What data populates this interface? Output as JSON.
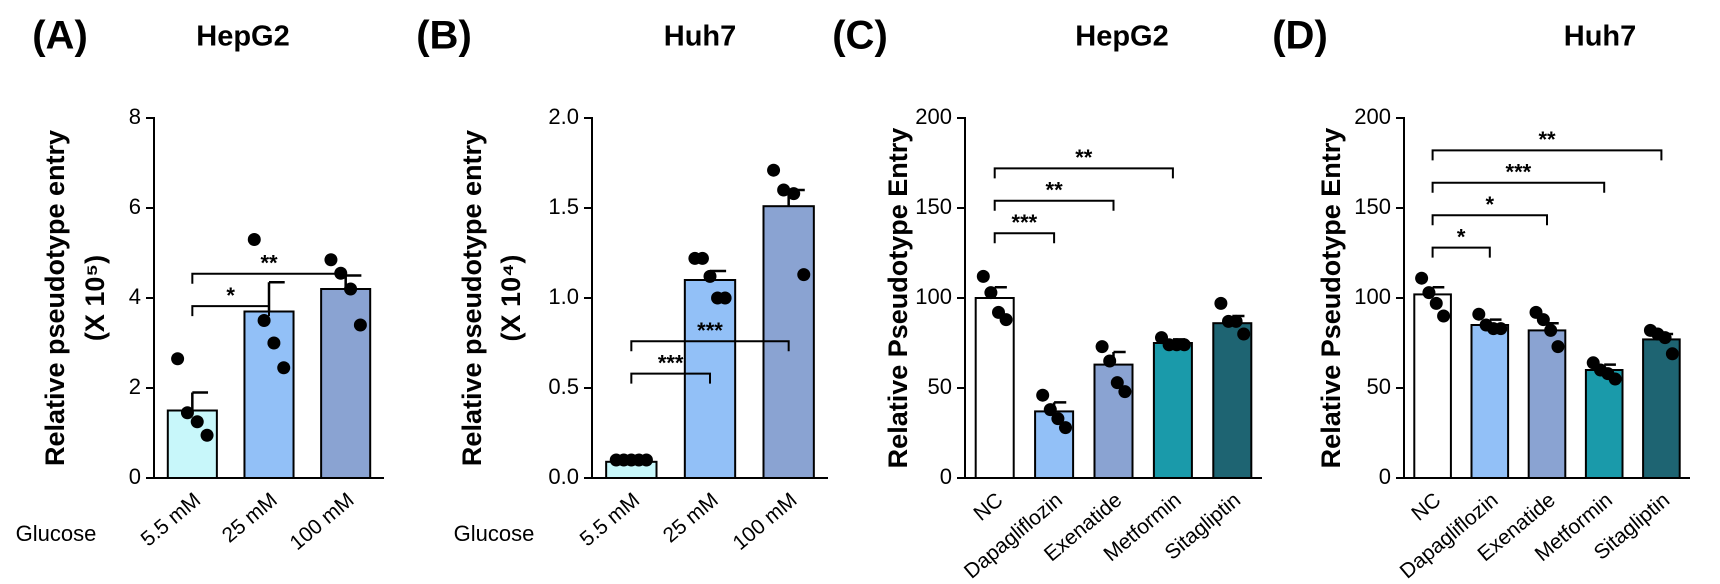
{
  "chart_data": [
    {
      "type": "bar",
      "panel_label": "(A)",
      "title": "HepG2",
      "y_label": "Relative pseudotype entry",
      "y_label_unit": "(X 10⁵)",
      "x_label": "Glucose",
      "categories": [
        "5.5 mM",
        "25 mM",
        "100 mM"
      ],
      "colors": [
        "#c8f7fa",
        "#92c0f7",
        "#8aa3d2"
      ],
      "values": [
        1.5,
        3.7,
        4.2
      ],
      "errors": [
        0.4,
        0.65,
        0.3
      ],
      "points": [
        [
          2.65,
          1.45,
          1.25,
          0.95
        ],
        [
          5.3,
          3.5,
          3.0,
          2.45
        ],
        [
          4.85,
          4.55,
          4.2,
          3.4
        ]
      ],
      "comparisons": [
        {
          "from": 0,
          "to": 1,
          "label": "*"
        },
        {
          "from": 0,
          "to": 2,
          "label": "**"
        }
      ],
      "ylim": [
        0,
        8
      ],
      "yticks": [
        0,
        2,
        4,
        6,
        8
      ]
    },
    {
      "type": "bar",
      "panel_label": "(B)",
      "title": "Huh7",
      "y_label": "Relative pseudotype entry",
      "y_label_unit": "(X 10⁴)",
      "x_label": "Glucose",
      "categories": [
        "5.5 mM",
        "25 mM",
        "100 mM"
      ],
      "colors": [
        "#c8f7fa",
        "#92c0f7",
        "#8aa3d2"
      ],
      "values": [
        0.09,
        1.1,
        1.51
      ],
      "errors": [
        0.01,
        0.05,
        0.09
      ],
      "points": [
        [
          0.1,
          0.1,
          0.1,
          0.1,
          0.1
        ],
        [
          1.22,
          1.22,
          1.12,
          1.0,
          1.0
        ],
        [
          1.71,
          1.6,
          1.58,
          1.13
        ]
      ],
      "comparisons": [
        {
          "from": 0,
          "to": 1,
          "label": "***"
        },
        {
          "from": 0,
          "to": 2,
          "label": "***"
        }
      ],
      "ylim": [
        0,
        2
      ],
      "yticks": [
        {
          "value": 0,
          "label": "0.0"
        },
        {
          "value": 0.5,
          "label": "0.5"
        },
        {
          "value": 1,
          "label": "1.0"
        },
        {
          "value": 1.5,
          "label": "1.5"
        },
        {
          "value": 2,
          "label": "2.0"
        }
      ]
    },
    {
      "type": "bar",
      "panel_label": "(C)",
      "title": "HepG2",
      "y_label": "Relative Pseudotype Entry",
      "categories": [
        "NC",
        "Dapagliflozin",
        "Exenatide",
        "Metformin",
        "Sitagliptin"
      ],
      "colors": [
        "#ffffff",
        "#92c0f7",
        "#8aa3d2",
        "#1a9aaa",
        "#1e6472"
      ],
      "values": [
        100,
        37,
        63,
        75,
        86
      ],
      "errors": [
        6,
        5,
        7,
        2,
        4
      ],
      "points": [
        [
          112,
          103,
          92,
          88
        ],
        [
          46,
          38,
          33,
          28
        ],
        [
          73,
          65,
          53,
          48
        ],
        [
          78,
          74,
          74,
          74
        ],
        [
          97,
          87,
          87,
          80
        ]
      ],
      "comparisons": [
        {
          "from": 0,
          "to": 1,
          "label": "***"
        },
        {
          "from": 0,
          "to": 2,
          "label": "**"
        },
        {
          "from": 0,
          "to": 3,
          "label": "**"
        }
      ],
      "ylim": [
        0,
        200
      ],
      "yticks": [
        0,
        50,
        100,
        150,
        200
      ]
    },
    {
      "type": "bar",
      "panel_label": "(D)",
      "title": "Huh7",
      "y_label": "Relative Pseudotype Entry",
      "categories": [
        "NC",
        "Dapagliflozin",
        "Exenatide",
        "Metformin",
        "Sitagliptin"
      ],
      "colors": [
        "#ffffff",
        "#92c0f7",
        "#8aa3d2",
        "#1a9aaa",
        "#1e6472"
      ],
      "values": [
        102,
        85,
        82,
        60,
        77
      ],
      "errors": [
        4,
        3,
        4,
        3,
        3
      ],
      "points": [
        [
          111,
          103,
          97,
          90
        ],
        [
          91,
          85,
          83,
          83
        ],
        [
          92,
          88,
          82,
          73
        ],
        [
          64,
          60,
          58,
          55
        ],
        [
          82,
          80,
          78,
          69
        ]
      ],
      "comparisons": [
        {
          "from": 0,
          "to": 1,
          "label": "*"
        },
        {
          "from": 0,
          "to": 2,
          "label": "*"
        },
        {
          "from": 0,
          "to": 3,
          "label": "***"
        },
        {
          "from": 0,
          "to": 4,
          "label": "**"
        }
      ],
      "ylim": [
        0,
        200
      ],
      "yticks": [
        0,
        50,
        100,
        150,
        200
      ]
    }
  ]
}
